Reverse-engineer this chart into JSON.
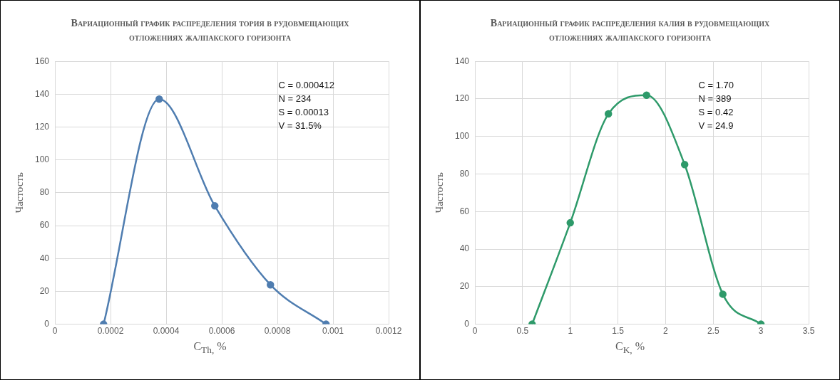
{
  "chart_data": [
    {
      "type": "line",
      "title": "Вариационный график распределения тория в рудовмещающих отложениях жалпакского горизонта",
      "xlabel": "C$_{Th,}$ %",
      "ylabel": "Частость",
      "x": [
        0.000175,
        0.000375,
        0.000575,
        0.000775,
        0.000975
      ],
      "series": [
        {
          "color": "#4f7db0",
          "values": [
            0,
            137,
            72,
            24,
            0
          ]
        }
      ],
      "xlim": [
        0,
        0.0012
      ],
      "xticks": [
        0,
        0.0002,
        0.0004,
        0.0006,
        0.0008,
        0.001,
        0.0012
      ],
      "ylim": [
        0,
        160
      ],
      "yticks": [
        0,
        20,
        40,
        60,
        80,
        100,
        120,
        140,
        160
      ],
      "grid": true,
      "legend": false,
      "marker": "circle",
      "annotations": [
        "C = 0.000412",
        "N = 234",
        "S = 0.00013",
        "V = 31.5%"
      ]
    },
    {
      "type": "line",
      "title": "Вариационный график распределения калия в рудовмещающих отложениях жалпакского горизонта",
      "xlabel": "C$_{K,}$ %",
      "ylabel": "Частость",
      "x": [
        0.6,
        1.0,
        1.4,
        1.8,
        2.2,
        2.6,
        3.0
      ],
      "series": [
        {
          "color": "#2e9a6a",
          "values": [
            0,
            54,
            112,
            122,
            85,
            16,
            0
          ]
        }
      ],
      "xlim": [
        0,
        3.5
      ],
      "xticks": [
        0,
        0.5,
        1,
        1.5,
        2,
        2.5,
        3,
        3.5
      ],
      "ylim": [
        0,
        140
      ],
      "yticks": [
        0,
        20,
        40,
        60,
        80,
        100,
        120,
        140
      ],
      "grid": true,
      "legend": false,
      "marker": "circle",
      "annotations": [
        "C = 1.70",
        "N = 389",
        "S = 0.42",
        "V = 24.9"
      ]
    }
  ]
}
